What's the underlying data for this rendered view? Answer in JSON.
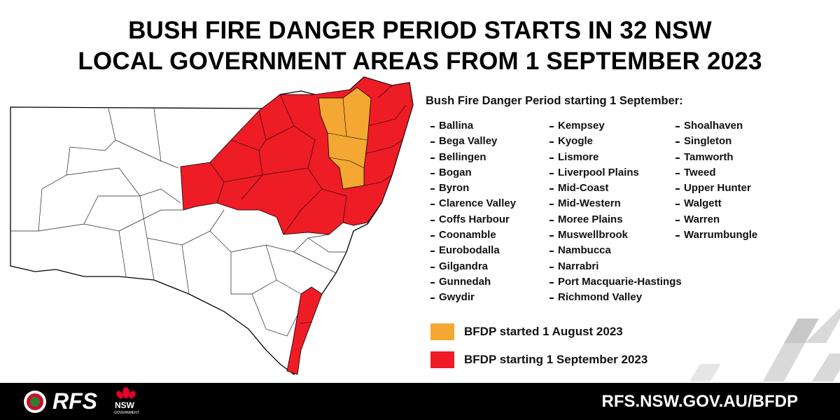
{
  "header": {
    "title_lines": [
      "BUSH FIRE DANGER PERIOD STARTS IN 32 NSW",
      "LOCAL GOVERNMENT AREAS FROM 1 SEPTEMBER 2023"
    ]
  },
  "list": {
    "heading": "Bush Fire Danger Period starting 1 September:",
    "columns": [
      [
        "Ballina",
        "Bega Valley",
        "Bellingen",
        "Bogan",
        "Byron",
        "Clarence Valley",
        "Coffs Harbour",
        "Coonamble",
        "Eurobodalla",
        "Gilgandra",
        "Gunnedah",
        "Gwydir"
      ],
      [
        "Kempsey",
        "Kyogle",
        "Lismore",
        "Liverpool Plains",
        "Mid-Coast",
        "Mid-Western",
        "Moree Plains",
        "Muswellbrook",
        "Nambucca",
        "Narrabri",
        "Port Macquarie-Hastings",
        "Richmond Valley"
      ],
      [
        "Shoalhaven",
        "Singleton",
        "Tamworth",
        "Tweed",
        "Upper Hunter",
        "Walgett",
        "Warren",
        "Warrumbungle"
      ]
    ]
  },
  "legend": [
    {
      "label": "BFDP started 1 August 2023",
      "color": "#f5a733"
    },
    {
      "label": "BFDP starting 1 September 2023",
      "color": "#ee1c25"
    }
  ],
  "footer": {
    "logo_text": "RFS",
    "nsw_text": "NSW",
    "nsw_sub": "GOVERNMENT",
    "url": "RFS.NSW.GOV.AU/BFDP"
  }
}
